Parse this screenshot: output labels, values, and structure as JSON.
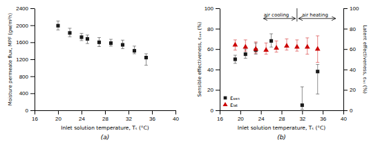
{
  "chart_data": [
    {
      "type": "scatter",
      "title": "(a)",
      "xlabel": "Inlet solution temperature, Tₛ (°C)",
      "ylabel": "Moisture permeate flux, MPF (gw/m²h)",
      "x": [
        20,
        22,
        24,
        25,
        27,
        29,
        31,
        33,
        35
      ],
      "series": [
        {
          "color": "#1a1a1a",
          "marker": "square",
          "values": [
            1990,
            1820,
            1720,
            1680,
            1600,
            1580,
            1540,
            1400,
            1240
          ],
          "error_minus": [
            100,
            90,
            80,
            110,
            100,
            70,
            90,
            70,
            180
          ],
          "error_plus": [
            110,
            110,
            90,
            90,
            110,
            90,
            110,
            110,
            90
          ]
        }
      ],
      "xlim": [
        16,
        40
      ],
      "ylim": [
        0,
        2400
      ],
      "xticks": [
        16,
        20,
        24,
        28,
        32,
        36,
        40
      ],
      "yticks": [
        0,
        400,
        800,
        1200,
        1600,
        2000,
        2400
      ]
    },
    {
      "type": "scatter",
      "title": "(b)",
      "xlabel": "Inlet solution temperature, Tₛ (°C)",
      "ylabel": "Sensible effectiveness, εₛₑₙ (%)",
      "y2label": "Latent effectiveness, εₗₐₜ (%)",
      "series": [
        {
          "name": "εₛₑₙ",
          "color": "#1a1a1a",
          "marker": "square",
          "x": [
            19,
            21,
            23,
            26,
            32,
            35
          ],
          "values": [
            50,
            55,
            59,
            68,
            5,
            38
          ],
          "error_minus": [
            4,
            4,
            4,
            6,
            4,
            22
          ],
          "error_plus": [
            4,
            5,
            7,
            7,
            18,
            7
          ]
        },
        {
          "name": "εₗₐₜ",
          "color": "#cc0000",
          "marker": "triangle",
          "axis": "y2",
          "x": [
            19,
            21,
            23,
            25,
            27,
            29,
            31,
            33,
            35
          ],
          "values": [
            64,
            62,
            60,
            59,
            61,
            63,
            62,
            62,
            60
          ],
          "error_minus": [
            5,
            4,
            4,
            4,
            4,
            4,
            4,
            7,
            13
          ],
          "error_plus": [
            5,
            7,
            7,
            7,
            7,
            7,
            7,
            9,
            13
          ]
        }
      ],
      "xlim": [
        16,
        40
      ],
      "ylim": [
        0,
        100
      ],
      "y2lim": [
        0,
        100
      ],
      "xticks": [
        16,
        20,
        24,
        28,
        32,
        36,
        40
      ],
      "yticks": [
        0,
        20,
        40,
        60,
        80,
        100
      ],
      "y2ticks": [
        0,
        20,
        40,
        60,
        80,
        100
      ],
      "legend": "lower left",
      "annotations": [
        {
          "text": "air cooling",
          "x": 27.0,
          "y": 90,
          "arrow": [
            24.5,
            30.7
          ]
        },
        {
          "text": "air heating",
          "x": 34.5,
          "y": 90,
          "arrow": [
            31.3,
            38.5
          ]
        }
      ],
      "vlines": [
        {
          "x": 31,
          "y": [
            87,
            100
          ]
        }
      ]
    }
  ]
}
